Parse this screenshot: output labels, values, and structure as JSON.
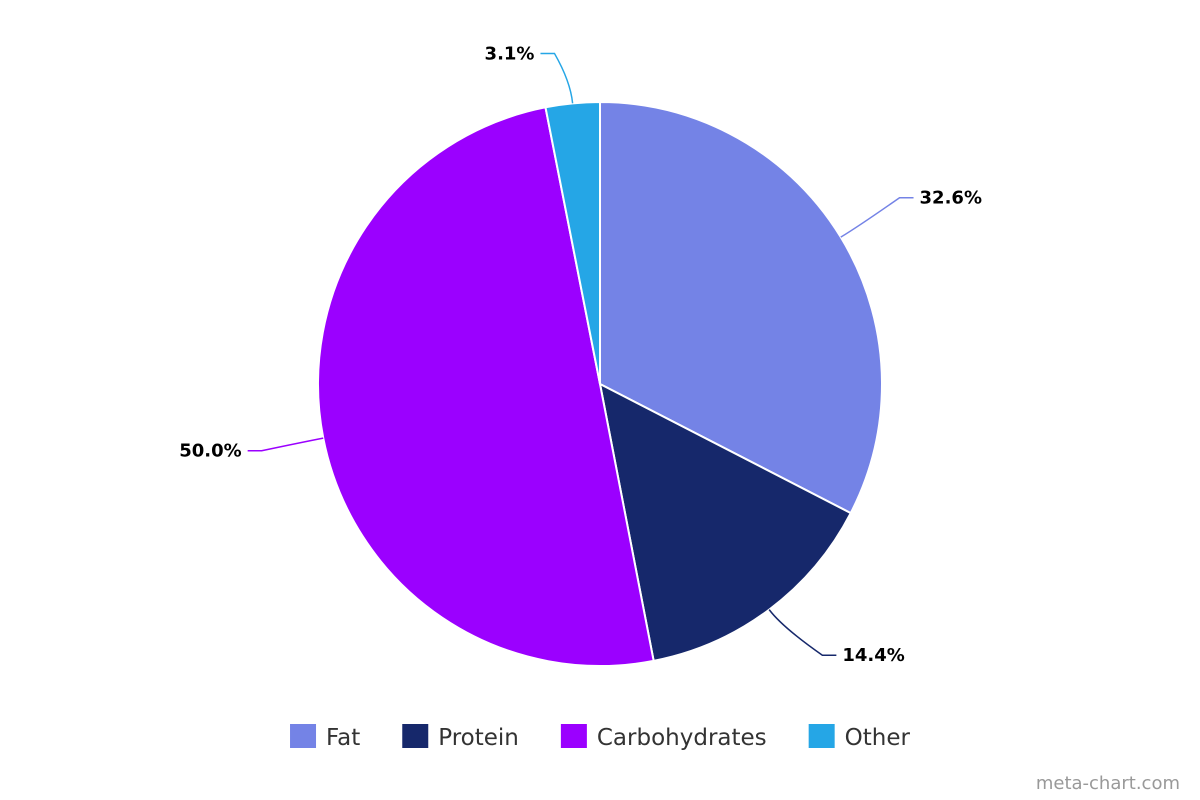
{
  "chart_data": {
    "type": "pie",
    "title": "",
    "slices": [
      {
        "name": "Fat",
        "value": 32.6,
        "label": "32.6%",
        "color": "#7483e6"
      },
      {
        "name": "Protein",
        "value": 14.4,
        "label": "14.4%",
        "color": "#16286b"
      },
      {
        "name": "Carbohydrates",
        "value": 50.0,
        "label": "50.0%",
        "color": "#9b00ff"
      },
      {
        "name": "Other",
        "value": 3.1,
        "label": "3.1%",
        "color": "#25a6e6"
      }
    ],
    "start_angle_deg": 0,
    "direction": "clockwise",
    "legend_position": "bottom"
  },
  "credit": "meta-chart.com"
}
